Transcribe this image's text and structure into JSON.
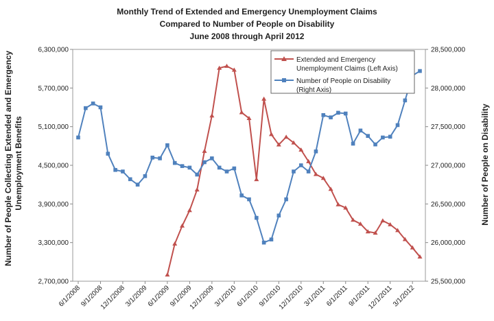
{
  "chart_data": {
    "type": "line",
    "title_lines": [
      "Monthly Trend of Extended and Emergency Unemployment Claims",
      "Compared to  Number of People on Disability",
      "June 2008 through April 2012"
    ],
    "ylabel_left_lines": [
      "Number of People Collecting Extended and Emergency",
      "Unemployment Benefits"
    ],
    "ylabel_right": "Number of People on Disability",
    "ylim_left": [
      2700000,
      6300000
    ],
    "ylim_right": [
      25500000,
      28500000
    ],
    "yticks_left": [
      "2,700,000",
      "3,300,000",
      "3,900,000",
      "4,500,000",
      "5,100,000",
      "5,700,000",
      "6,300,000"
    ],
    "yticks_right": [
      "25,500,000",
      "26,000,000",
      "26,500,000",
      "27,000,000",
      "27,500,000",
      "28,000,000",
      "28,500,000"
    ],
    "x": [
      "6/1/2008",
      "7/1/2008",
      "8/1/2008",
      "9/1/2008",
      "10/1/2008",
      "11/1/2008",
      "12/1/2008",
      "1/1/2009",
      "2/1/2009",
      "3/1/2009",
      "4/1/2009",
      "5/1/2009",
      "6/1/2009",
      "7/1/2009",
      "8/1/2009",
      "9/1/2009",
      "10/1/2009",
      "11/1/2009",
      "12/1/2009",
      "1/1/2010",
      "2/1/2010",
      "3/1/2010",
      "4/1/2010",
      "5/1/2010",
      "6/1/2010",
      "7/1/2010",
      "8/1/2010",
      "9/1/2010",
      "10/1/2010",
      "11/1/2010",
      "12/1/2010",
      "1/1/2011",
      "2/1/2011",
      "3/1/2011",
      "4/1/2011",
      "5/1/2011",
      "6/1/2011",
      "7/1/2011",
      "8/1/2011",
      "9/1/2011",
      "10/1/2011",
      "11/1/2011",
      "12/1/2011",
      "1/1/2012",
      "2/1/2012",
      "3/1/2012",
      "4/1/2012"
    ],
    "xtick_labels": [
      "6/1/2008",
      "9/1/2008",
      "12/1/2008",
      "3/1/2009",
      "6/1/2009",
      "9/1/2009",
      "12/1/2009",
      "3/1/2010",
      "6/1/2010",
      "9/1/2010",
      "12/1/2010",
      "3/1/2011",
      "6/1/2011",
      "9/1/2011",
      "12/1/2011",
      "3/1/2012"
    ],
    "series": [
      {
        "name": "Extended and Emergency Unemployment Claims (Left Axis)",
        "axis": "left",
        "color": "#c0504d",
        "marker": "triangle",
        "values": [
          null,
          null,
          null,
          null,
          null,
          null,
          null,
          null,
          null,
          null,
          null,
          null,
          2800000,
          3280000,
          3560000,
          3800000,
          4120000,
          4720000,
          5270000,
          6010000,
          6040000,
          5980000,
          5320000,
          5230000,
          4280000,
          5530000,
          4980000,
          4820000,
          4940000,
          4850000,
          4740000,
          4560000,
          4360000,
          4300000,
          4130000,
          3890000,
          3840000,
          3650000,
          3590000,
          3470000,
          3450000,
          3640000,
          3580000,
          3490000,
          3350000,
          3220000,
          3080000
        ]
      },
      {
        "name": "Number of People on Disability (Right Axis)",
        "axis": "right",
        "color": "#4f81bd",
        "marker": "square",
        "values": [
          27360000,
          27740000,
          27800000,
          27750000,
          27150000,
          26940000,
          26920000,
          26820000,
          26750000,
          26860000,
          27100000,
          27090000,
          27260000,
          27030000,
          26990000,
          26970000,
          26880000,
          27040000,
          27090000,
          26970000,
          26920000,
          26960000,
          26610000,
          26560000,
          26320000,
          26000000,
          26040000,
          26350000,
          26560000,
          26920000,
          27000000,
          26920000,
          27180000,
          27650000,
          27620000,
          27680000,
          27670000,
          27280000,
          27450000,
          27380000,
          27270000,
          27360000,
          27370000,
          27520000,
          27840000,
          28160000,
          28220000
        ]
      }
    ],
    "legend_lines": [
      [
        "Extended and Emergency",
        "Unemployment Claims (Left Axis)"
      ],
      [
        "Number of People on Disability",
        "(Right Axis)"
      ]
    ],
    "legend_position": "top-right",
    "grid": false
  }
}
